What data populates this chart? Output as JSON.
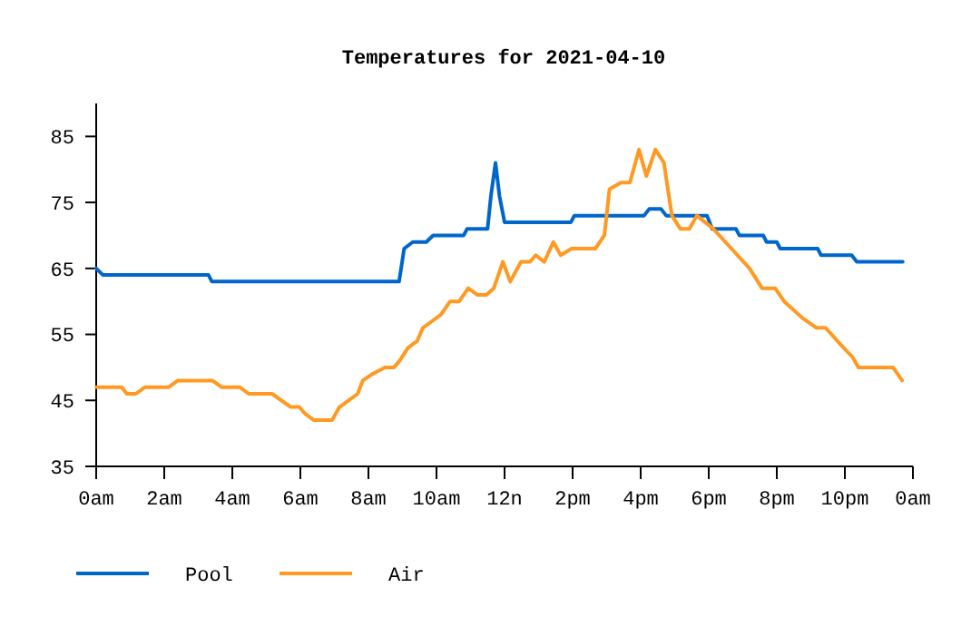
{
  "chart_data": {
    "type": "line",
    "title": "Temperatures for 2021-04-10",
    "xlim": [
      "2021-04-10T00:00",
      "2021-04-11T00:00"
    ],
    "ylim": [
      35,
      90
    ],
    "xticks": [
      {
        "value": "2021-04-10T00:00",
        "label": "0am"
      },
      {
        "value": "2021-04-10T02:00",
        "label": "2am"
      },
      {
        "value": "2021-04-10T04:00",
        "label": "4am"
      },
      {
        "value": "2021-04-10T06:00",
        "label": "6am"
      },
      {
        "value": "2021-04-10T08:00",
        "label": "8am"
      },
      {
        "value": "2021-04-10T10:00",
        "label": "10am"
      },
      {
        "value": "2021-04-10T12:00",
        "label": "12n"
      },
      {
        "value": "2021-04-10T14:00",
        "label": "2pm"
      },
      {
        "value": "2021-04-10T16:00",
        "label": "4pm"
      },
      {
        "value": "2021-04-10T18:00",
        "label": "6pm"
      },
      {
        "value": "2021-04-10T20:00",
        "label": "8pm"
      },
      {
        "value": "2021-04-10T22:00",
        "label": "10pm"
      },
      {
        "value": "2021-04-11T00:00",
        "label": "0am"
      }
    ],
    "yticks": [
      35,
      45,
      55,
      65,
      75,
      85
    ],
    "grid": false,
    "legend": "bottom",
    "marker": "none",
    "line_style": "solid",
    "series": [
      {
        "name": "Pool",
        "color": "#0066cc",
        "x": [
          "2021-04-10T00:00",
          "2021-04-10T00:12",
          "2021-04-10T03:18",
          "2021-04-10T03:24",
          "2021-04-10T08:54",
          "2021-04-10T09:03",
          "2021-04-10T09:18",
          "2021-04-10T09:42",
          "2021-04-10T09:54",
          "2021-04-10T10:48",
          "2021-04-10T10:54",
          "2021-04-10T11:30",
          "2021-04-10T11:36",
          "2021-04-10T11:44",
          "2021-04-10T11:51",
          "2021-04-10T12:00",
          "2021-04-10T13:57",
          "2021-04-10T14:03",
          "2021-04-10T16:06",
          "2021-04-10T16:15",
          "2021-04-10T16:36",
          "2021-04-10T16:45",
          "2021-04-10T17:57",
          "2021-04-10T18:06",
          "2021-04-10T18:48",
          "2021-04-10T18:54",
          "2021-04-10T19:36",
          "2021-04-10T19:42",
          "2021-04-10T20:00",
          "2021-04-10T20:06",
          "2021-04-10T21:12",
          "2021-04-10T21:18",
          "2021-04-10T22:12",
          "2021-04-10T22:21",
          "2021-04-10T23:42"
        ],
        "values": [
          65,
          64,
          64,
          63,
          63,
          68,
          69,
          69,
          70,
          70,
          71,
          71,
          76,
          81,
          76,
          72,
          72,
          73,
          73,
          74,
          74,
          73,
          73,
          71,
          71,
          70,
          70,
          69,
          69,
          68,
          68,
          67,
          67,
          66,
          66
        ]
      },
      {
        "name": "Air",
        "color": "#ff9922",
        "x": [
          "2021-04-10T00:00",
          "2021-04-10T00:45",
          "2021-04-10T00:54",
          "2021-04-10T01:10",
          "2021-04-10T01:26",
          "2021-04-10T02:08",
          "2021-04-10T02:24",
          "2021-04-10T03:25",
          "2021-04-10T03:41",
          "2021-04-10T04:13",
          "2021-04-10T04:29",
          "2021-04-10T05:10",
          "2021-04-10T05:43",
          "2021-04-10T05:58",
          "2021-04-10T06:08",
          "2021-04-10T06:24",
          "2021-04-10T06:56",
          "2021-04-10T07:09",
          "2021-04-10T07:25",
          "2021-04-10T07:41",
          "2021-04-10T07:50",
          "2021-04-10T08:07",
          "2021-04-10T08:29",
          "2021-04-10T08:45",
          "2021-04-10T08:55",
          "2021-04-10T09:10",
          "2021-04-10T09:26",
          "2021-04-10T09:36",
          "2021-04-10T09:52",
          "2021-04-10T10:08",
          "2021-04-10T10:24",
          "2021-04-10T10:40",
          "2021-04-10T10:56",
          "2021-04-10T11:12",
          "2021-04-10T11:28",
          "2021-04-10T11:41",
          "2021-04-10T11:57",
          "2021-04-10T12:10",
          "2021-04-10T12:29",
          "2021-04-10T12:45",
          "2021-04-10T12:55",
          "2021-04-10T13:10",
          "2021-04-10T13:26",
          "2021-04-10T13:39",
          "2021-04-10T13:58",
          "2021-04-10T14:40",
          "2021-04-10T14:56",
          "2021-04-10T15:05",
          "2021-04-10T15:25",
          "2021-04-10T15:41",
          "2021-04-10T15:57",
          "2021-04-10T16:10",
          "2021-04-10T16:26",
          "2021-04-10T16:41",
          "2021-04-10T16:55",
          "2021-04-10T17:10",
          "2021-04-10T17:26",
          "2021-04-10T17:39",
          "2021-04-10T18:08",
          "2021-04-10T18:40",
          "2021-04-10T19:12",
          "2021-04-10T19:34",
          "2021-04-10T19:57",
          "2021-04-10T20:13",
          "2021-04-10T20:45",
          "2021-04-10T21:10",
          "2021-04-10T21:26",
          "2021-04-10T21:52",
          "2021-04-10T22:14",
          "2021-04-10T22:24",
          "2021-04-10T23:25",
          "2021-04-10T23:41"
        ],
        "values": [
          47,
          47,
          46,
          46,
          47,
          47,
          48,
          48,
          47,
          47,
          46,
          46,
          44,
          44,
          43,
          42,
          42,
          44,
          45,
          46,
          48,
          49,
          50,
          50,
          51,
          53,
          54,
          56,
          57,
          58,
          60,
          60,
          62,
          61,
          61,
          62,
          66,
          63,
          66,
          66,
          67,
          66,
          69,
          67,
          68,
          68,
          70,
          77,
          78,
          78,
          83,
          79,
          83,
          81,
          73,
          71,
          71,
          73,
          71,
          68,
          65,
          62,
          62,
          60,
          57.5,
          56,
          56,
          53.5,
          51.5,
          50,
          50,
          48
        ]
      }
    ]
  }
}
